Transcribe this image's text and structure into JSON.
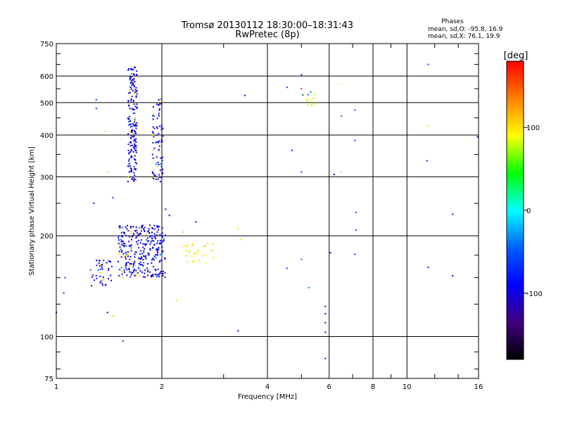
{
  "chart_data": {
    "type": "scatter",
    "title": "Tromsø 20130112 18:30:00–18:31:43",
    "subtitle": "RwPretec (8p)",
    "xlabel": "Frequency [MHz]",
    "ylabel": "Stationary phase Virtual Height [km]",
    "x_scale": "log",
    "y_scale": "log",
    "xlim": [
      1,
      16
    ],
    "ylim": [
      75,
      750
    ],
    "x_ticks": [
      1,
      2,
      4,
      6,
      8,
      10,
      16
    ],
    "x_tick_labels": [
      "1",
      "2",
      "4",
      "6",
      "8",
      "10",
      "16"
    ],
    "y_ticks": [
      75,
      100,
      200,
      300,
      400,
      500,
      600,
      750
    ],
    "y_tick_labels": [
      "75",
      "100",
      "200",
      "300",
      "400",
      "500",
      "600",
      "750"
    ],
    "grid": true,
    "stats": {
      "heading": "Phases",
      "line_o": "mean, sd,O:  -95.8, 16.9",
      "line_x": "mean, sd,X:  76.1, 19.9"
    },
    "colorbar": {
      "label": "[deg]",
      "range": [
        -180,
        180
      ],
      "ticks": [
        100,
        0,
        -100
      ],
      "tick_labels": [
        "100",
        "0",
        "-100"
      ],
      "colors": [
        "#ff0000",
        "#ff8000",
        "#ffff00",
        "#00ff00",
        "#00ffff",
        "#0060ff",
        "#0000ff",
        "#400080",
        "#000000"
      ]
    },
    "clusters": [
      {
        "x": [
          1.6,
          1.7
        ],
        "y": [
          290,
          640
        ],
        "phase": -100,
        "n": 190
      },
      {
        "x": [
          1.88,
          2.02
        ],
        "y": [
          290,
          520
        ],
        "phase": -100,
        "n": 80
      },
      {
        "x": [
          1.25,
          1.45
        ],
        "y": [
          140,
          170
        ],
        "phase": -100,
        "n": 45
      },
      {
        "x": [
          1.5,
          2.05
        ],
        "y": [
          150,
          215
        ],
        "phase": -100,
        "n": 320
      },
      {
        "x": [
          2.3,
          2.9
        ],
        "y": [
          165,
          190
        ],
        "phase": 90,
        "n": 30
      },
      {
        "x": [
          4.9,
          5.5
        ],
        "y": [
          490,
          540
        ],
        "phase": 90,
        "n": 14
      }
    ],
    "points": [
      {
        "x": 1.0,
        "y": 118,
        "phase": -100
      },
      {
        "x": 1.05,
        "y": 135,
        "phase": -80
      },
      {
        "x": 1.06,
        "y": 150,
        "phase": -60
      },
      {
        "x": 1.28,
        "y": 250,
        "phase": -100
      },
      {
        "x": 1.3,
        "y": 510,
        "phase": -60
      },
      {
        "x": 1.3,
        "y": 480,
        "phase": -60
      },
      {
        "x": 1.38,
        "y": 410,
        "phase": 110
      },
      {
        "x": 1.4,
        "y": 310,
        "phase": 110
      },
      {
        "x": 1.45,
        "y": 260,
        "phase": -60
      },
      {
        "x": 1.4,
        "y": 118,
        "phase": -100
      },
      {
        "x": 1.45,
        "y": 115,
        "phase": 110
      },
      {
        "x": 1.55,
        "y": 97,
        "phase": -60
      },
      {
        "x": 2.05,
        "y": 240,
        "phase": -100
      },
      {
        "x": 2.1,
        "y": 230,
        "phase": -100
      },
      {
        "x": 2.2,
        "y": 128,
        "phase": 110
      },
      {
        "x": 2.3,
        "y": 205,
        "phase": 110
      },
      {
        "x": 2.5,
        "y": 220,
        "phase": -100
      },
      {
        "x": 3.3,
        "y": 210,
        "phase": 110
      },
      {
        "x": 3.35,
        "y": 195,
        "phase": 110
      },
      {
        "x": 3.3,
        "y": 104,
        "phase": -100
      },
      {
        "x": 3.45,
        "y": 525,
        "phase": -100
      },
      {
        "x": 4.55,
        "y": 555,
        "phase": -60
      },
      {
        "x": 4.7,
        "y": 360,
        "phase": -100
      },
      {
        "x": 4.55,
        "y": 160,
        "phase": -60
      },
      {
        "x": 5.0,
        "y": 605,
        "phase": -100
      },
      {
        "x": 5.0,
        "y": 550,
        "phase": 170
      },
      {
        "x": 5.0,
        "y": 310,
        "phase": -60
      },
      {
        "x": 5.0,
        "y": 170,
        "phase": -40
      },
      {
        "x": 5.25,
        "y": 140,
        "phase": -40
      },
      {
        "x": 5.85,
        "y": 123,
        "phase": -100
      },
      {
        "x": 5.85,
        "y": 117,
        "phase": -100
      },
      {
        "x": 5.85,
        "y": 110,
        "phase": -100
      },
      {
        "x": 5.85,
        "y": 103,
        "phase": -100
      },
      {
        "x": 5.85,
        "y": 86,
        "phase": -100
      },
      {
        "x": 6.05,
        "y": 178,
        "phase": -100
      },
      {
        "x": 6.2,
        "y": 305,
        "phase": -100
      },
      {
        "x": 6.5,
        "y": 570,
        "phase": 90
      },
      {
        "x": 6.5,
        "y": 455,
        "phase": -40
      },
      {
        "x": 6.5,
        "y": 310,
        "phase": 110
      },
      {
        "x": 7.1,
        "y": 475,
        "phase": -60
      },
      {
        "x": 7.1,
        "y": 385,
        "phase": -60
      },
      {
        "x": 7.15,
        "y": 235,
        "phase": -60
      },
      {
        "x": 7.15,
        "y": 208,
        "phase": -60
      },
      {
        "x": 7.1,
        "y": 176,
        "phase": -60
      },
      {
        "x": 11.5,
        "y": 650,
        "phase": -60
      },
      {
        "x": 11.5,
        "y": 425,
        "phase": 110
      },
      {
        "x": 11.4,
        "y": 335,
        "phase": -100
      },
      {
        "x": 11.5,
        "y": 161,
        "phase": -100
      },
      {
        "x": 13.5,
        "y": 232,
        "phase": -100
      },
      {
        "x": 13.5,
        "y": 152,
        "phase": -100
      },
      {
        "x": 15.9,
        "y": 395,
        "phase": -100
      }
    ]
  }
}
